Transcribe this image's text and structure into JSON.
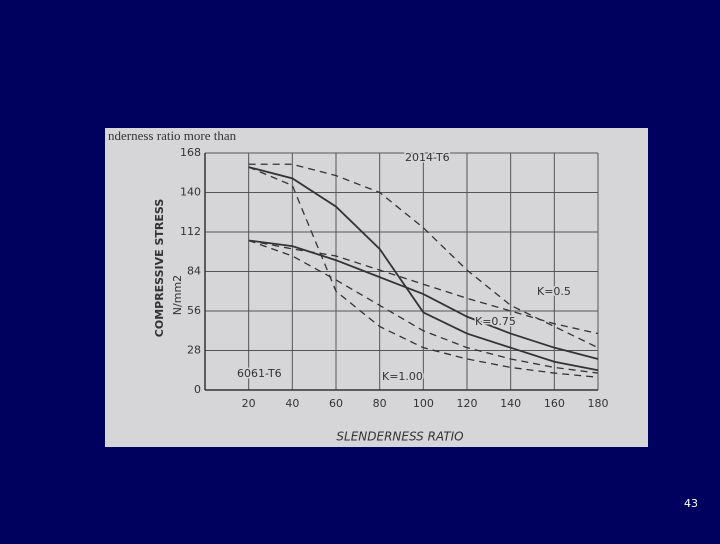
{
  "chart_data": {
    "type": "line",
    "header_text": "nderness ratio more than",
    "x_label": "SLENDERNESS RATIO",
    "y_label": "COMPRESSIVE STRESS",
    "y_unit": "N/mm2",
    "x": [
      20,
      40,
      60,
      80,
      100,
      120,
      140,
      160,
      180
    ],
    "series": [
      {
        "color": "#333",
        "dash": true,
        "values": [
          160,
          160,
          152,
          140,
          115,
          85,
          60,
          45,
          30
        ]
      },
      {
        "color": "#333",
        "dash": false,
        "values": [
          158,
          150,
          130,
          100,
          55,
          40,
          30,
          20,
          14
        ]
      },
      {
        "color": "#333",
        "dash": true,
        "values": [
          158,
          145,
          70,
          45,
          30,
          22,
          16,
          12,
          9
        ]
      },
      {
        "color": "#333",
        "dash": true,
        "values": [
          106,
          100,
          95,
          85,
          75,
          65,
          56,
          47,
          40
        ]
      },
      {
        "color": "#333",
        "dash": false,
        "values": [
          106,
          102,
          92,
          80,
          68,
          52,
          40,
          30,
          22
        ]
      },
      {
        "color": "#333",
        "dash": true,
        "values": [
          106,
          95,
          78,
          60,
          42,
          30,
          22,
          16,
          12
        ]
      }
    ],
    "annotations": [
      "2014-T6",
      "6061-T6",
      "K=0.5",
      "K=0.75",
      "K=1.00"
    ],
    "xlim": [
      0,
      180
    ],
    "xticks": [
      20,
      40,
      60,
      80,
      100,
      120,
      140,
      160,
      180
    ],
    "ylim": [
      0,
      168
    ],
    "yticks": [
      0,
      28,
      56,
      84,
      112,
      140,
      168
    ],
    "grid": true,
    "page_number": "43"
  }
}
